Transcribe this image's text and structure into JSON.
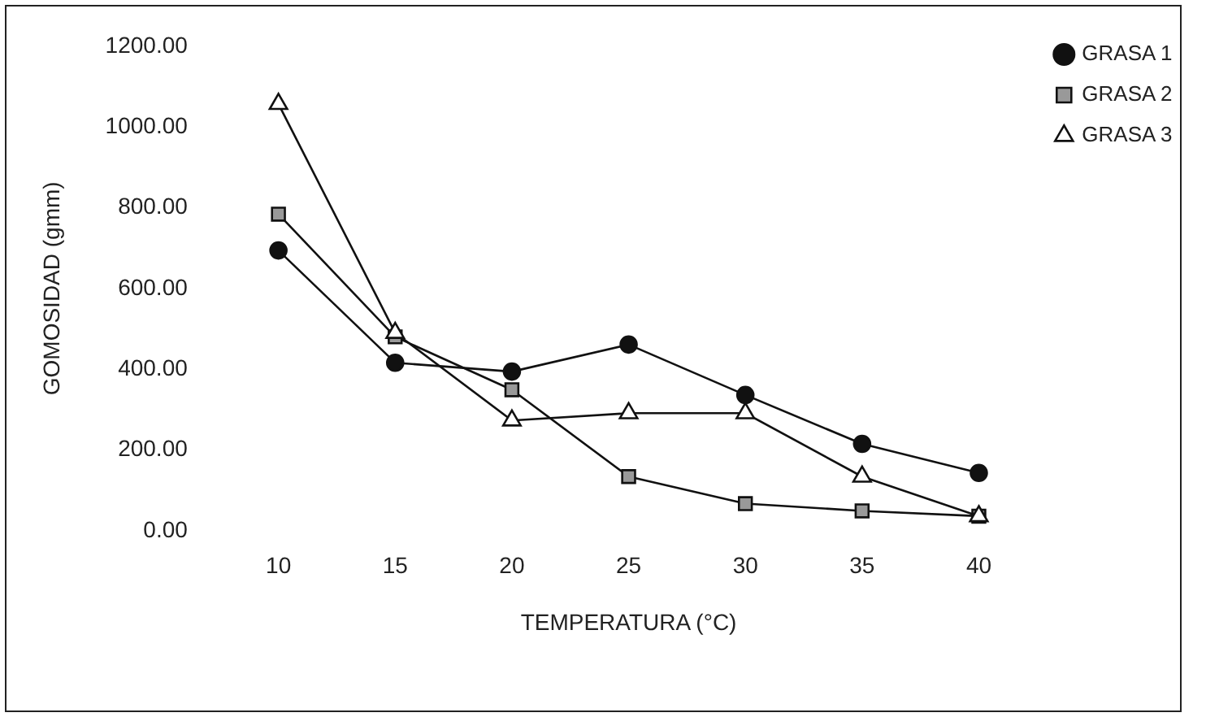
{
  "chart_data": {
    "type": "line",
    "xlabel": "TEMPERATURA (°C)",
    "ylabel": "GOMOSIDAD (gmm)",
    "categories": [
      "10",
      "15",
      "20",
      "25",
      "30",
      "35",
      "40"
    ],
    "ylim": [
      0,
      1200
    ],
    "yticks": [
      {
        "value": 0,
        "label": "0.00"
      },
      {
        "value": 200,
        "label": "200.00"
      },
      {
        "value": 400,
        "label": "400.00"
      },
      {
        "value": 600,
        "label": "600.00"
      },
      {
        "value": 800,
        "label": "800.00"
      },
      {
        "value": 1000,
        "label": "1000.00"
      },
      {
        "value": 1200,
        "label": "1200.00"
      }
    ],
    "grid": false,
    "legend": "top right",
    "line_style": "solid",
    "series": [
      {
        "name": "GRASA 1",
        "color": "#111111",
        "marker": "circle",
        "values": [
          694,
          416,
          394,
          461,
          336,
          215,
          143
        ]
      },
      {
        "name": "GRASA 2",
        "color": "#999999",
        "marker": "square",
        "values": [
          784,
          480,
          349,
          134,
          67,
          49,
          36
        ]
      },
      {
        "name": "GRASA 3",
        "color": "#ffffff",
        "marker": "triangle",
        "values": [
          1057,
          490,
          273,
          291,
          291,
          134,
          36
        ]
      }
    ]
  }
}
